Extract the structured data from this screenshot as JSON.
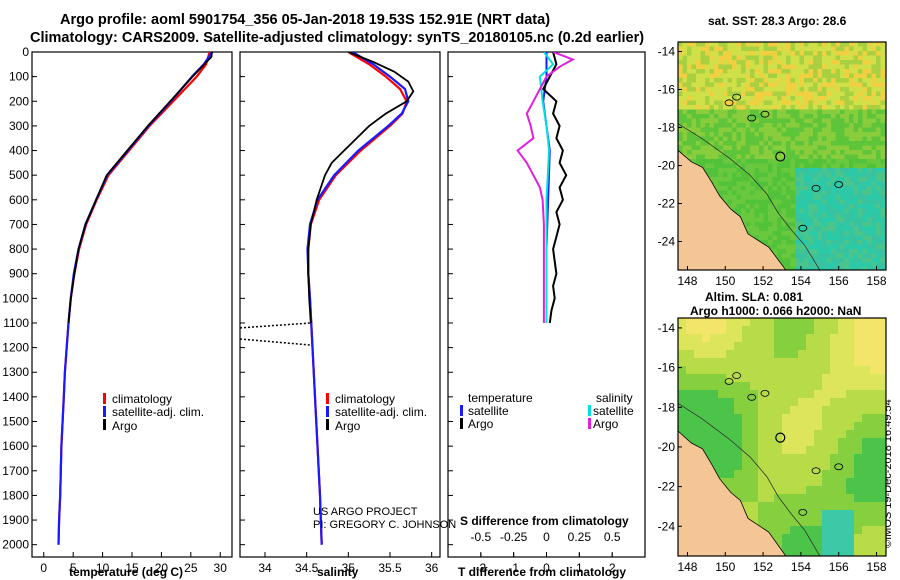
{
  "title_line1": "Argo profile: aoml 5901754_356 05-Jan-2018 19.53S 152.91E (NRT data)",
  "title_line2": "Climatology: CARS2009. Satellite-adjusted climatology: synTS_20180105.nc (0.2d earlier)",
  "credit_line1": "US ARGO PROJECT",
  "credit_line2": "PI: GREGORY C. JOHNSON",
  "imos_stamp": "©IMOS 19-Dec-2018 16:49:54",
  "map_top_title": "sat. SST: 28.3 Argo: 28.6",
  "map_bottom_title1": "Altim. SLA: 0.081",
  "map_bottom_title2": "Argo h1000: 0.066 h2000: NaN",
  "colors": {
    "climatology": "#ff0000",
    "satellite": "#1a1aff",
    "argo": "#000000",
    "sal_satellite": "#00e0e0",
    "sal_argo": "#e020e0",
    "land": "#f4c595",
    "sea_green": "#3fbf3f",
    "sea_cyan": "#2ad1b0"
  },
  "chart_data": [
    {
      "type": "line",
      "name": "temperature-profile",
      "xlabel": "temperature (deg C)",
      "ylabel": "",
      "xlim": [
        -2,
        32
      ],
      "ylim": [
        2050,
        0
      ],
      "xticks": [
        0,
        5,
        10,
        15,
        20,
        25,
        30
      ],
      "yticks": [
        0,
        100,
        200,
        300,
        400,
        500,
        600,
        700,
        800,
        900,
        1000,
        1100,
        1200,
        1300,
        1400,
        1500,
        1600,
        1700,
        1800,
        1900,
        2000
      ],
      "legend": [
        "climatology",
        "satellite-adj. clim.",
        "Argo"
      ],
      "series": [
        {
          "name": "climatology",
          "depth": [
            0,
            50,
            100,
            200,
            300,
            400,
            500,
            600,
            700,
            800,
            900,
            1000,
            1100,
            1200,
            1300,
            1400,
            1500,
            1600,
            1700,
            1800,
            1900,
            2000
          ],
          "values": [
            28.2,
            27.6,
            26.0,
            22.0,
            18.0,
            14.5,
            11.0,
            9.0,
            7.2,
            6.0,
            5.2,
            4.6,
            4.2,
            3.9,
            3.6,
            3.4,
            3.2,
            3.0,
            2.9,
            2.8,
            2.6,
            2.5
          ]
        },
        {
          "name": "satellite-adj. clim.",
          "depth": [
            0,
            50,
            100,
            200,
            300,
            400,
            500,
            600,
            700,
            800,
            900,
            1000,
            1100,
            1200,
            1300,
            1400,
            1500,
            1600,
            1700,
            1800,
            1900,
            2000
          ],
          "values": [
            28.6,
            27.2,
            25.2,
            21.6,
            17.8,
            14.3,
            10.8,
            8.9,
            7.1,
            5.9,
            5.1,
            4.6,
            4.2,
            3.9,
            3.6,
            3.4,
            3.2,
            3.0,
            2.9,
            2.8,
            2.6,
            2.5
          ]
        },
        {
          "name": "Argo",
          "depth": [
            0,
            20,
            50,
            100,
            200,
            300,
            400,
            500,
            600,
            700,
            800,
            900,
            1000,
            1100
          ],
          "values": [
            28.6,
            28.5,
            27.3,
            25.3,
            21.5,
            17.7,
            14.2,
            10.7,
            8.9,
            7.1,
            5.9,
            5.2,
            4.6,
            4.2
          ]
        }
      ]
    },
    {
      "type": "line",
      "name": "salinity-profile",
      "xlabel": "salinity",
      "ylabel": "",
      "xlim": [
        33.7,
        36.1
      ],
      "ylim": [
        2050,
        0
      ],
      "xticks": [
        34,
        34.5,
        35,
        35.5,
        36
      ],
      "legend": [
        "climatology",
        "satellite-adj. clim.",
        "Argo"
      ],
      "series": [
        {
          "name": "climatology",
          "depth": [
            0,
            50,
            100,
            150,
            200,
            250,
            300,
            400,
            500,
            600,
            700,
            800,
            900,
            1000,
            1200,
            1400,
            1600,
            1800,
            2000
          ],
          "values": [
            35.0,
            35.25,
            35.45,
            35.62,
            35.7,
            35.65,
            35.5,
            35.15,
            34.85,
            34.65,
            34.55,
            34.52,
            34.52,
            34.54,
            34.57,
            34.6,
            34.63,
            34.66,
            34.68
          ]
        },
        {
          "name": "satellite-adj. clim.",
          "depth": [
            0,
            50,
            100,
            150,
            200,
            250,
            300,
            400,
            500,
            600,
            700,
            800,
            900,
            1000,
            1200,
            1400,
            1600,
            1800,
            2000
          ],
          "values": [
            35.05,
            35.3,
            35.5,
            35.68,
            35.72,
            35.64,
            35.48,
            35.12,
            34.83,
            34.63,
            34.54,
            34.51,
            34.52,
            34.54,
            34.57,
            34.6,
            34.63,
            34.66,
            34.68
          ]
        },
        {
          "name": "Argo",
          "depth": [
            0,
            40,
            80,
            120,
            160,
            200,
            250,
            300,
            400,
            450,
            500,
            600,
            700,
            800,
            900,
            1000,
            1100
          ],
          "values": [
            35.0,
            35.3,
            35.55,
            35.72,
            35.78,
            35.7,
            35.45,
            35.25,
            34.95,
            34.8,
            34.72,
            34.62,
            34.55,
            34.52,
            34.52,
            34.53,
            34.55
          ]
        }
      ]
    },
    {
      "type": "line",
      "name": "difference-profile",
      "xlabel": "T difference from climatology",
      "xlabel2": "S difference from climatology",
      "xlim": [
        -3,
        3
      ],
      "ylim": [
        2050,
        0
      ],
      "xticks": [
        -2,
        -1,
        0,
        1,
        2
      ],
      "s_ticks": [
        -0.5,
        -0.25,
        0,
        0.25,
        0.5
      ],
      "s_tick_labels": [
        "-0.5",
        "-0.25",
        "0",
        "0.25",
        "0.5"
      ],
      "legend_temperature_title": "temperature",
      "legend_salinity_title": "salinity",
      "legend_items": [
        "satellite",
        "Argo"
      ],
      "series": [
        {
          "name": "T satellite",
          "depth": [
            0,
            100,
            200,
            300,
            400,
            600,
            800,
            1000,
            1100
          ],
          "values": [
            0.0,
            0.0,
            -0.1,
            0.0,
            0.1,
            0.05,
            0.0,
            0.0,
            0.0
          ]
        },
        {
          "name": "T Argo",
          "depth": [
            0,
            50,
            100,
            150,
            200,
            250,
            300,
            350,
            400,
            450,
            500,
            550,
            600,
            650,
            700,
            750,
            800,
            850,
            900,
            950,
            1000,
            1050,
            1100
          ],
          "values": [
            0.2,
            0.3,
            0.1,
            -0.1,
            0.3,
            0.2,
            0.4,
            0.3,
            0.5,
            0.4,
            0.6,
            0.4,
            0.5,
            0.3,
            0.4,
            0.3,
            0.2,
            0.25,
            0.3,
            0.2,
            0.25,
            0.15,
            0.1
          ]
        },
        {
          "name": "S satellite",
          "depth": [
            0,
            50,
            100,
            200,
            300,
            400,
            600,
            800,
            1000,
            1100
          ],
          "values": [
            -0.02,
            0.05,
            -0.05,
            -0.03,
            0.0,
            0.02,
            0.0,
            0.0,
            0.0,
            0.0
          ]
        },
        {
          "name": "S Argo",
          "depth": [
            0,
            30,
            60,
            100,
            150,
            200,
            250,
            300,
            350,
            400,
            450,
            500,
            550,
            600,
            700,
            800,
            1000,
            1100
          ],
          "values": [
            0.05,
            0.2,
            0.1,
            0.0,
            -0.05,
            -0.1,
            -0.15,
            -0.12,
            -0.1,
            -0.22,
            -0.15,
            -0.1,
            -0.05,
            -0.03,
            -0.02,
            -0.02,
            -0.02,
            -0.02
          ]
        }
      ]
    },
    {
      "type": "heatmap",
      "name": "sst-map",
      "title": "sat. SST: 28.3 Argo: 28.6",
      "xlim": [
        147.5,
        158.5
      ],
      "ylim": [
        -25.5,
        -13.5
      ],
      "xticks": [
        148,
        150,
        152,
        154,
        156,
        158
      ],
      "yticks": [
        -14,
        -16,
        -18,
        -20,
        -22,
        -24
      ],
      "argo_position": {
        "lon": 152.91,
        "lat": -19.53
      }
    },
    {
      "type": "heatmap",
      "name": "sla-map",
      "title": "Altim. SLA: 0.081",
      "xlim": [
        147.5,
        158.5
      ],
      "ylim": [
        -25.5,
        -13.5
      ],
      "xticks": [
        148,
        150,
        152,
        154,
        156,
        158
      ],
      "yticks": [
        -14,
        -16,
        -18,
        -20,
        -22,
        -24
      ],
      "argo_position": {
        "lon": 152.91,
        "lat": -19.53
      }
    }
  ]
}
